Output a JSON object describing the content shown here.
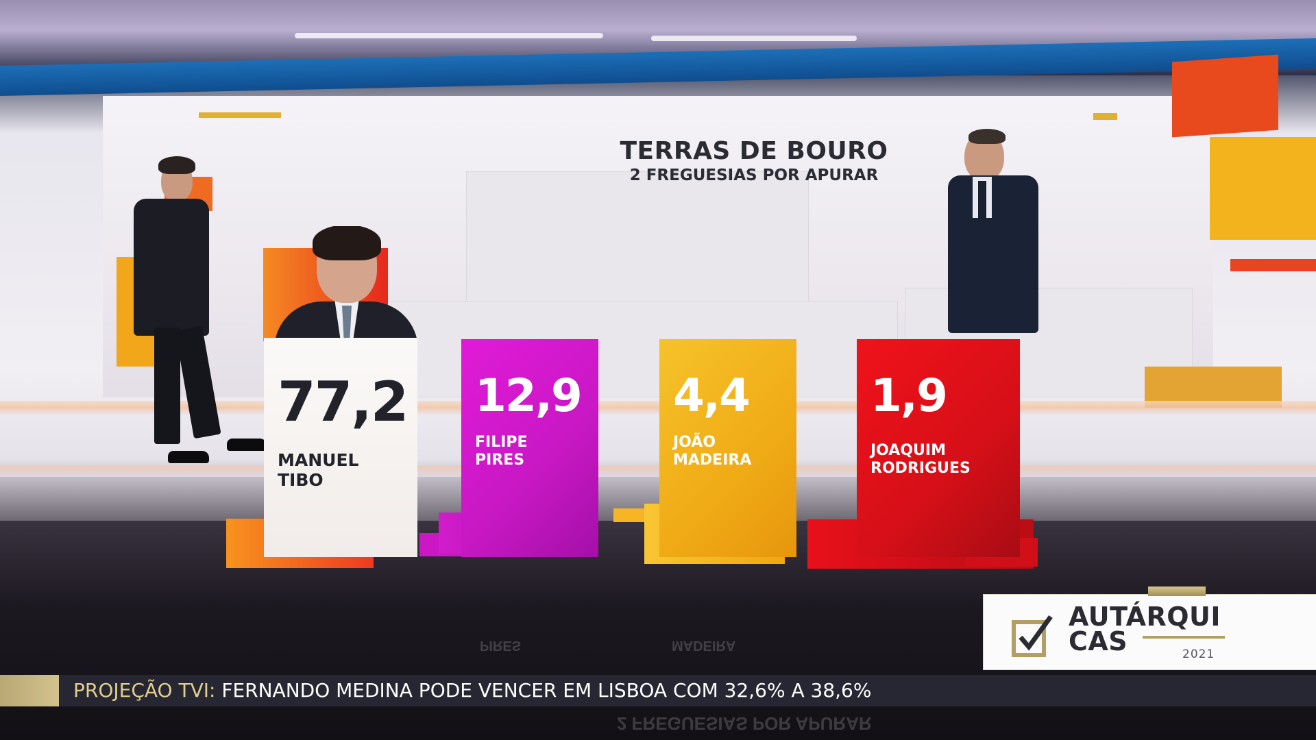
{
  "graphic": {
    "title": "TERRAS DE BOURO",
    "subtitle": "2 FREGUESIAS POR APURAR"
  },
  "candidates": [
    {
      "pct": "77,2",
      "name_line1": "MANUEL",
      "name_line2": "TIBO",
      "color": "#f3eeeb"
    },
    {
      "pct": "12,9",
      "name_line1": "FILIPE",
      "name_line2": "PIRES",
      "color": "#d61bd0"
    },
    {
      "pct": "4,4",
      "name_line1": "JOÃO",
      "name_line2": "MADEIRA",
      "color": "#f2b41f"
    },
    {
      "pct": "1,9",
      "name_line1": "JOAQUIM",
      "name_line2": "RODRIGUES",
      "color": "#e0101a"
    }
  ],
  "ticker": {
    "label": "PROJEÇÃO TVI:",
    "message": "FERNANDO MEDINA PODE VENCER EM LISBOA COM 32,6% A 38,6%"
  },
  "logo": {
    "line1": "AUTÁRQUI",
    "line2": "CAS",
    "year": "2021",
    "icon": "checkbox-check-icon"
  },
  "colors": {
    "accent_gold": "#c9b57c",
    "ticker_bg": "#262733",
    "magenta": "#d61bd0",
    "yellow": "#f2b41f",
    "red": "#e0101a",
    "orange": "#f47a1a"
  }
}
